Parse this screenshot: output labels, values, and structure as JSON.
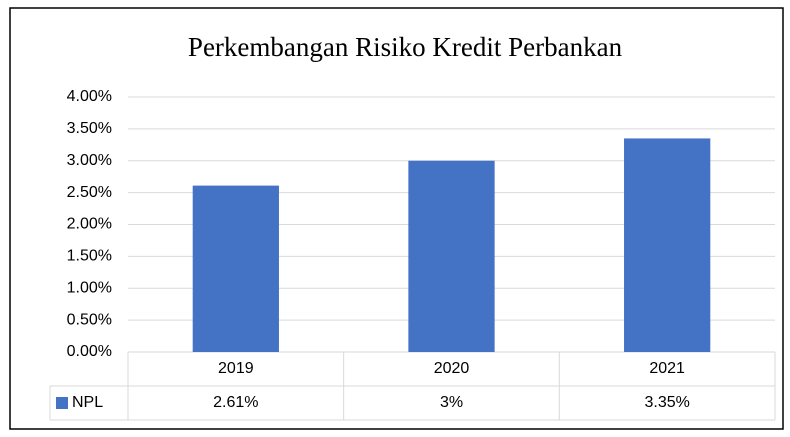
{
  "chart_data": {
    "type": "bar",
    "title": "Perkembangan Risiko Kredit Perbankan",
    "categories": [
      "2019",
      "2020",
      "2021"
    ],
    "series": [
      {
        "name": "NPL",
        "color": "#4472c4",
        "values": [
          2.61,
          3,
          3.35
        ],
        "value_labels": [
          "2.61%",
          "3%",
          "3.35%"
        ]
      }
    ],
    "ylim": [
      0,
      4
    ],
    "yticks": [
      {
        "value": 0,
        "label": "0.00%"
      },
      {
        "value": 0.5,
        "label": "0.50%"
      },
      {
        "value": 1,
        "label": "1.00%"
      },
      {
        "value": 1.5,
        "label": "1.50%"
      },
      {
        "value": 2,
        "label": "2.00%"
      },
      {
        "value": 2.5,
        "label": "2.50%"
      },
      {
        "value": 3,
        "label": "3.00%"
      },
      {
        "value": 3.5,
        "label": "3.50%"
      },
      {
        "value": 4,
        "label": "4.00%"
      }
    ],
    "grid": true
  }
}
